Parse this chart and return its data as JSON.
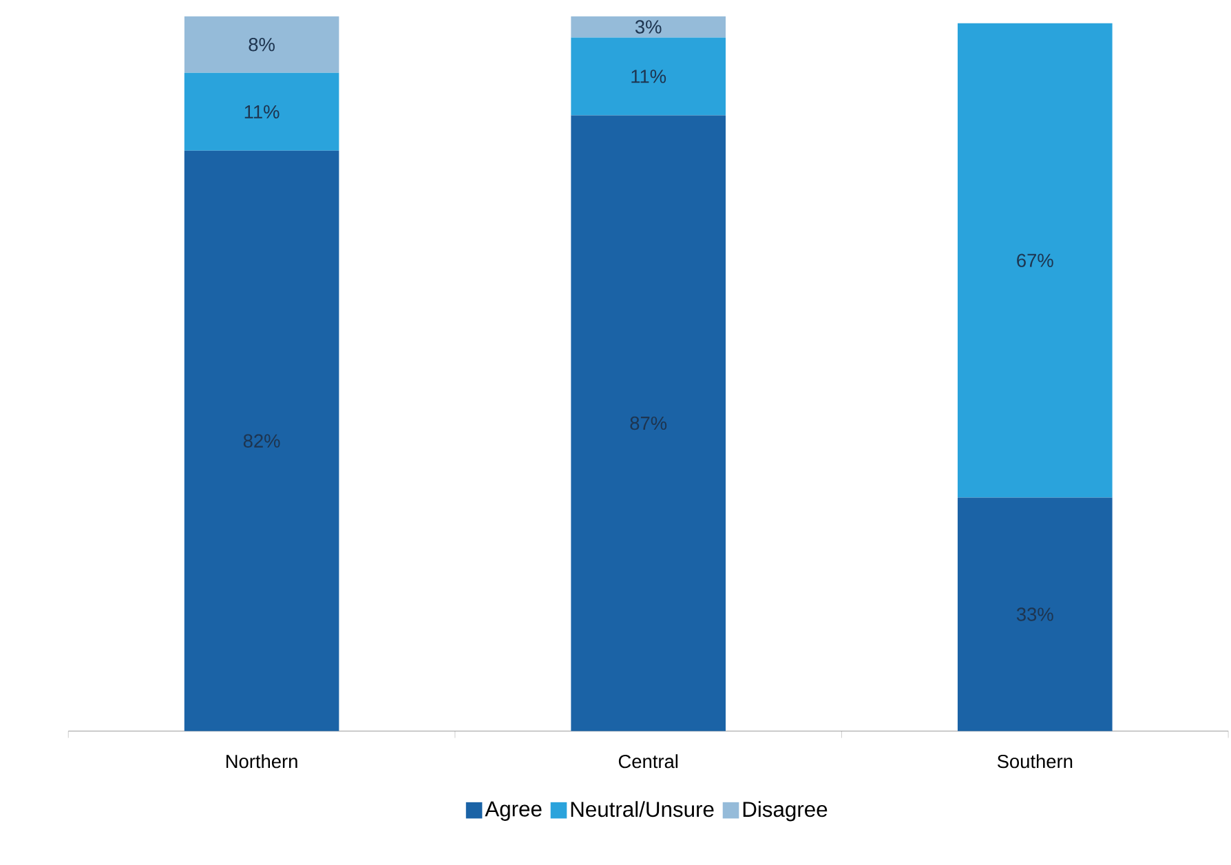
{
  "chart_data": {
    "type": "bar",
    "stacked": true,
    "categories": [
      "Northern",
      "Central",
      "Southern"
    ],
    "series": [
      {
        "name": "Agree",
        "color": "#1b63a6",
        "values": [
          82,
          87,
          33
        ],
        "value_labels": [
          "82%",
          "87%",
          "33%"
        ]
      },
      {
        "name": "Neutral/Unsure",
        "color": "#2aa3dc",
        "values": [
          11,
          11,
          67
        ],
        "value_labels": [
          "11%",
          "11%",
          "67%"
        ]
      },
      {
        "name": "Disagree",
        "color": "#95bbd9",
        "values": [
          8,
          3,
          0
        ],
        "value_labels": [
          "8%",
          "3%",
          null
        ]
      }
    ],
    "ylim": [
      0,
      101
    ],
    "legend": "bottom"
  }
}
